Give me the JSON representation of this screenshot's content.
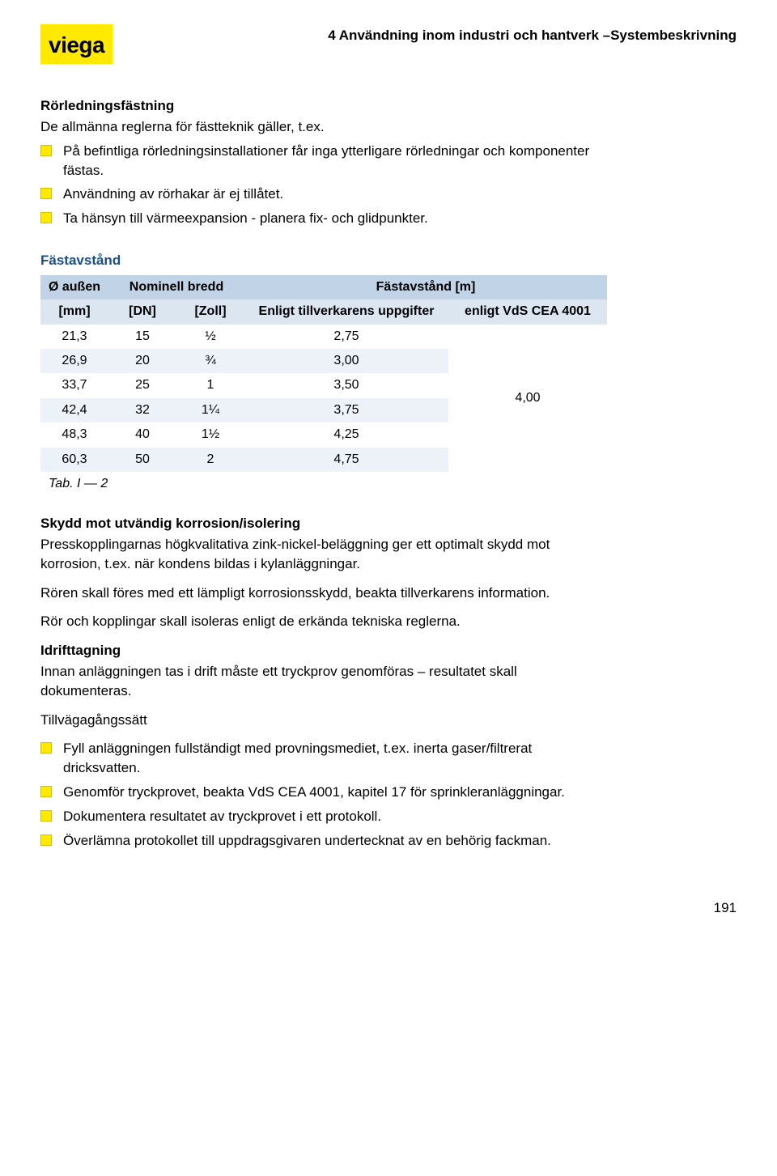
{
  "logo": {
    "text": "viega"
  },
  "breadcrumb": "4 Användning inom industri och hantverk –Systembeskrivning",
  "section1": {
    "heading": "Rörledningsfästning",
    "intro": "De allmänna reglerna för fästteknik gäller, t.ex.",
    "bullets": [
      "På befintliga rörledningsinstallationer får inga ytterligare rörledningar och komponenter fästas.",
      "Användning av rörhakar är ej tillåtet.",
      "Ta hänsyn till värmeexpansion - planera fix- och glidpunkter."
    ]
  },
  "table": {
    "title": "Fästavstånd",
    "header_top": {
      "col1": "Ø außen",
      "col2": "Nominell bredd",
      "col3": "Fästavstånd [m]"
    },
    "header_sub": {
      "c1": "[mm]",
      "c2": "[DN]",
      "c3": "[Zoll]",
      "c4": "Enligt tillverkarens uppgifter",
      "c5": "enligt VdS CEA 4001"
    },
    "rows": [
      {
        "mm": "21,3",
        "dn": "15",
        "zoll": "½",
        "manu": "2,75"
      },
      {
        "mm": "26,9",
        "dn": "20",
        "zoll": "¾",
        "manu": "3,00"
      },
      {
        "mm": "33,7",
        "dn": "25",
        "zoll": "1",
        "manu": "3,50"
      },
      {
        "mm": "42,4",
        "dn": "32",
        "zoll": "1¼",
        "manu": "3,75"
      },
      {
        "mm": "48,3",
        "dn": "40",
        "zoll": "1½",
        "manu": "4,25"
      },
      {
        "mm": "60,3",
        "dn": "50",
        "zoll": "2",
        "manu": "4,75"
      }
    ],
    "merged_vds": "4,00",
    "caption": "Tab. I — 2",
    "colors": {
      "header_top_bg": "#c1d3e6",
      "header_sub_bg": "#dbe6f1",
      "row_even_bg": "#ecf2f8",
      "row_odd_bg": "#ffffff",
      "title_color": "#1a4e8a"
    }
  },
  "section2": {
    "heading": "Skydd mot utvändig korrosion/isolering",
    "p1": "Presskopplingarnas högkvalitativa zink-nickel-beläggning ger ett optimalt skydd mot korrosion, t.ex. när kondens bildas i kylanläggningar.",
    "p2": "Rören skall föres med ett lämpligt korrosionsskydd, beakta tillverkarens information.",
    "p3": "Rör och kopplingar skall isoleras enligt de erkända tekniska reglerna."
  },
  "section3": {
    "heading": "Idrifttagning",
    "p1": "Innan anläggningen tas i drift måste ett tryckprov genomföras – resultatet skall dokumenteras.",
    "p2": "Tillvägagångssätt",
    "bullets": [
      "Fyll anläggningen fullständigt med provningsmediet, t.ex. inerta gaser/filtrerat dricksvatten.",
      "Genomför tryckprovet, beakta VdS CEA 4001, kapitel 17 för sprinkleranläggningar.",
      "Dokumentera resultatet av tryckprovet i ett protokoll.",
      "Överlämna protokollet till uppdragsgivaren undertecknat av en behörig fackman."
    ]
  },
  "pageNumber": "191"
}
